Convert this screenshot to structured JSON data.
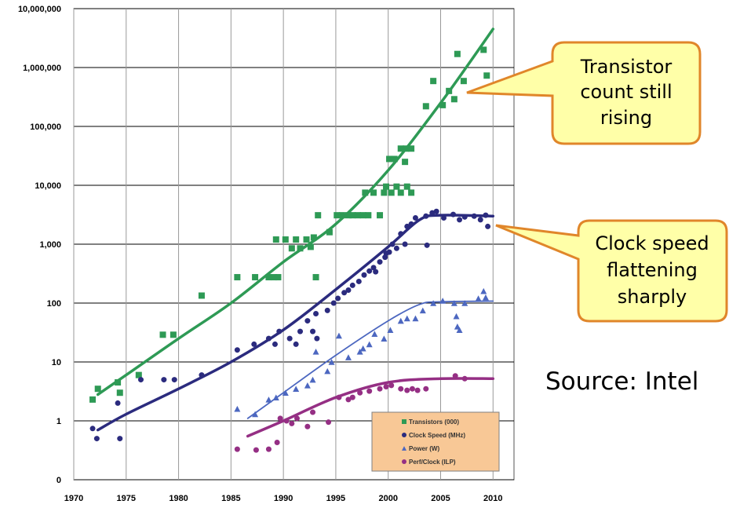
{
  "source_label": "Source: Intel",
  "callouts": [
    {
      "name": "transistor-callout",
      "lines": [
        "Transistor",
        "count still",
        "rising"
      ]
    },
    {
      "name": "clock-callout",
      "lines": [
        "Clock speed",
        "flattening",
        "sharply"
      ]
    }
  ],
  "colors": {
    "transistors": "#2e9a55",
    "clock": "#2b2b7e",
    "power": "#4c67c0",
    "ilp": "#952f84",
    "callout_fill": "#ffffa8",
    "callout_border": "#e0862a",
    "legend_fill": "#f8c896",
    "grid": "#000000"
  },
  "chart_data": {
    "type": "scatter",
    "x_range": [
      1970,
      2012
    ],
    "y_range": [
      0.1,
      10000000
    ],
    "y_scale": "log",
    "grid": true,
    "legend_position": "bottom-right",
    "x_ticks": [
      "1970",
      "1975",
      "1980",
      "1985",
      "1990",
      "1995",
      "2000",
      "2005",
      "2010"
    ],
    "x_tick_values": [
      1970,
      1975,
      1980,
      1985,
      1990,
      1995,
      2000,
      2005,
      2010
    ],
    "y_ticks": [
      {
        "value": 0.1,
        "label": "0"
      },
      {
        "value": 1,
        "label": "1"
      },
      {
        "value": 10,
        "label": "10"
      },
      {
        "value": 100,
        "label": "100"
      },
      {
        "value": 1000,
        "label": "1,000"
      },
      {
        "value": 10000,
        "label": "10,000"
      },
      {
        "value": 100000,
        "label": "100,000"
      },
      {
        "value": 1000000,
        "label": "1,000,000"
      },
      {
        "value": 10000000,
        "label": "10,000,000"
      }
    ],
    "series": [
      {
        "name": "Transistors (000)",
        "key": "transistors",
        "marker": "square",
        "points": [
          [
            1971.8,
            2.3
          ],
          [
            1972.3,
            3.5
          ],
          [
            1974.2,
            4.5
          ],
          [
            1974.4,
            3
          ],
          [
            1976.2,
            6
          ],
          [
            1978.5,
            29
          ],
          [
            1979.5,
            29
          ],
          [
            1982.2,
            134
          ],
          [
            1985.6,
            275
          ],
          [
            1987.3,
            275
          ],
          [
            1988.6,
            275
          ],
          [
            1989.1,
            275
          ],
          [
            1989.5,
            275
          ],
          [
            1989.3,
            1200
          ],
          [
            1990.2,
            1200
          ],
          [
            1990.8,
            850
          ],
          [
            1991.2,
            1200
          ],
          [
            1991.6,
            850
          ],
          [
            1992.2,
            1200
          ],
          [
            1992.6,
            900
          ],
          [
            1992.9,
            1300
          ],
          [
            1993.1,
            275
          ],
          [
            1993.3,
            3100
          ],
          [
            1994.4,
            1600
          ],
          [
            1995.1,
            3100
          ],
          [
            1995.6,
            3100
          ],
          [
            1996.2,
            3100
          ],
          [
            1996.6,
            3100
          ],
          [
            1997.1,
            3100
          ],
          [
            1997.6,
            3100
          ],
          [
            1998.1,
            3100
          ],
          [
            1999.2,
            3100
          ],
          [
            1997.8,
            7500
          ],
          [
            1998.6,
            7500
          ],
          [
            1999.6,
            7500
          ],
          [
            2000.3,
            7500
          ],
          [
            2001.2,
            7500
          ],
          [
            2002.2,
            7500
          ],
          [
            1999.8,
            9500
          ],
          [
            2000.8,
            9500
          ],
          [
            2001.8,
            9500
          ],
          [
            2000.1,
            28000
          ],
          [
            2000.6,
            28000
          ],
          [
            2001.2,
            42000
          ],
          [
            2001.7,
            42000
          ],
          [
            2002.2,
            42000
          ],
          [
            2001.6,
            25000
          ],
          [
            2003.6,
            220000
          ],
          [
            2004.3,
            590000
          ],
          [
            2005.2,
            230000
          ],
          [
            2005.8,
            400000
          ],
          [
            2006.3,
            290000
          ],
          [
            2006.6,
            1700000
          ],
          [
            2007.2,
            590000
          ],
          [
            2009.1,
            2000000
          ],
          [
            2009.4,
            730000
          ]
        ],
        "trend": [
          [
            1972.3,
            2.8
          ],
          [
            1975,
            6
          ],
          [
            1980,
            25
          ],
          [
            1985,
            100
          ],
          [
            1990,
            500
          ],
          [
            1995,
            2200
          ],
          [
            2000,
            18000
          ],
          [
            2005,
            250000
          ],
          [
            2010,
            4500000
          ]
        ]
      },
      {
        "name": "Clock Speed (MHz)",
        "key": "clock",
        "marker": "circle",
        "points": [
          [
            1971.8,
            0.74
          ],
          [
            1972.2,
            0.5
          ],
          [
            1974.2,
            2
          ],
          [
            1974.4,
            0.5
          ],
          [
            1976.4,
            5
          ],
          [
            1978.6,
            5
          ],
          [
            1979.6,
            5
          ],
          [
            1982.2,
            6
          ],
          [
            1985.6,
            16
          ],
          [
            1987.2,
            20
          ],
          [
            1988.6,
            25
          ],
          [
            1989.2,
            20
          ],
          [
            1989.6,
            33
          ],
          [
            1990.6,
            25
          ],
          [
            1991.2,
            20
          ],
          [
            1991.6,
            33
          ],
          [
            1992.3,
            50
          ],
          [
            1992.8,
            33
          ],
          [
            1993.1,
            66
          ],
          [
            1993.2,
            25
          ],
          [
            1994.2,
            75
          ],
          [
            1994.8,
            100
          ],
          [
            1995.2,
            120
          ],
          [
            1995.8,
            150
          ],
          [
            1996.2,
            166
          ],
          [
            1996.6,
            200
          ],
          [
            1997.2,
            233
          ],
          [
            1997.7,
            300
          ],
          [
            1998.2,
            350
          ],
          [
            1998.6,
            400
          ],
          [
            1999.2,
            500
          ],
          [
            1999.7,
            600
          ],
          [
            2000.1,
            733
          ],
          [
            2000.4,
            1000
          ],
          [
            2000.8,
            850
          ],
          [
            2001.2,
            1500
          ],
          [
            2001.6,
            1000
          ],
          [
            2002.2,
            2200
          ],
          [
            2002.6,
            2800
          ],
          [
            2003.6,
            3000
          ],
          [
            2004.2,
            3400
          ],
          [
            2004.6,
            3600
          ],
          [
            2005.3,
            2800
          ],
          [
            2006.2,
            3200
          ],
          [
            2006.8,
            2600
          ],
          [
            2007.3,
            2900
          ],
          [
            2008.2,
            3000
          ],
          [
            2008.8,
            2600
          ],
          [
            2009.3,
            3100
          ],
          [
            2009.5,
            2000
          ],
          [
            2003.7,
            960
          ],
          [
            2001.8,
            2000
          ],
          [
            1998.8,
            340
          ],
          [
            1999.8,
            700
          ]
        ],
        "trend": [
          [
            1972.3,
            0.7
          ],
          [
            1975,
            1.3
          ],
          [
            1980,
            3.5
          ],
          [
            1985,
            10
          ],
          [
            1990,
            35
          ],
          [
            1995,
            170
          ],
          [
            2000,
            900
          ],
          [
            2003,
            2600
          ],
          [
            2005,
            3100
          ],
          [
            2010,
            3000
          ]
        ]
      },
      {
        "name": "Power (W)",
        "key": "power",
        "marker": "triangle",
        "points": [
          [
            1985.6,
            1.6
          ],
          [
            1987.3,
            1.3
          ],
          [
            1988.6,
            2.3
          ],
          [
            1989.3,
            2.5
          ],
          [
            1990.2,
            3
          ],
          [
            1991.2,
            3.5
          ],
          [
            1992.3,
            4
          ],
          [
            1992.8,
            5
          ],
          [
            1993.1,
            15
          ],
          [
            1994.2,
            7
          ],
          [
            1994.6,
            10
          ],
          [
            1995.3,
            28
          ],
          [
            1996.2,
            12
          ],
          [
            1997.3,
            15
          ],
          [
            1997.6,
            17
          ],
          [
            1998.2,
            20
          ],
          [
            1998.7,
            30
          ],
          [
            1999.6,
            25
          ],
          [
            2000.2,
            35
          ],
          [
            2001.2,
            50
          ],
          [
            2001.8,
            55
          ],
          [
            2002.6,
            55
          ],
          [
            2003.3,
            75
          ],
          [
            2004.3,
            100
          ],
          [
            2005.2,
            110
          ],
          [
            2006.3,
            100
          ],
          [
            2006.6,
            40
          ],
          [
            2006.8,
            35
          ],
          [
            2007.3,
            100
          ],
          [
            2008.6,
            120
          ],
          [
            2009.1,
            160
          ],
          [
            2009.3,
            125
          ],
          [
            2006.5,
            60
          ]
        ],
        "trend": [
          [
            1986.6,
            1.1
          ],
          [
            1990,
            3
          ],
          [
            1995,
            13
          ],
          [
            2000,
            50
          ],
          [
            2003,
            95
          ],
          [
            2005,
            105
          ],
          [
            2010,
            108
          ]
        ]
      },
      {
        "name": "Perf/Clock (ILP)",
        "key": "ilp",
        "marker": "circle",
        "points": [
          [
            1985.6,
            0.33
          ],
          [
            1987.4,
            0.32
          ],
          [
            1988.6,
            0.33
          ],
          [
            1989.4,
            0.43
          ],
          [
            1989.7,
            1.1
          ],
          [
            1990.3,
            1
          ],
          [
            1990.8,
            0.9
          ],
          [
            1991.3,
            1.1
          ],
          [
            1992.3,
            0.8
          ],
          [
            1992.8,
            1.4
          ],
          [
            1994.3,
            0.95
          ],
          [
            1995.3,
            2.5
          ],
          [
            1996.2,
            2.3
          ],
          [
            1996.6,
            2.5
          ],
          [
            1997.3,
            3
          ],
          [
            1998.2,
            3.2
          ],
          [
            1999.2,
            3.5
          ],
          [
            1999.8,
            3.8
          ],
          [
            2000.3,
            4
          ],
          [
            2001.2,
            3.5
          ],
          [
            2001.8,
            3.3
          ],
          [
            2002.3,
            3.5
          ],
          [
            2003.6,
            3.5
          ],
          [
            2006.4,
            5.8
          ],
          [
            2007.3,
            5.2
          ],
          [
            2002.8,
            3.3
          ]
        ],
        "trend": [
          [
            1986.6,
            0.55
          ],
          [
            1990,
            1
          ],
          [
            1995,
            2.5
          ],
          [
            2000,
            4.5
          ],
          [
            2005,
            5.2
          ],
          [
            2010,
            5.2
          ]
        ]
      }
    ],
    "legend": [
      "Transistors (000)",
      "Clock Speed (MHz)",
      "Power (W)",
      "Perf/Clock (ILP)"
    ]
  }
}
